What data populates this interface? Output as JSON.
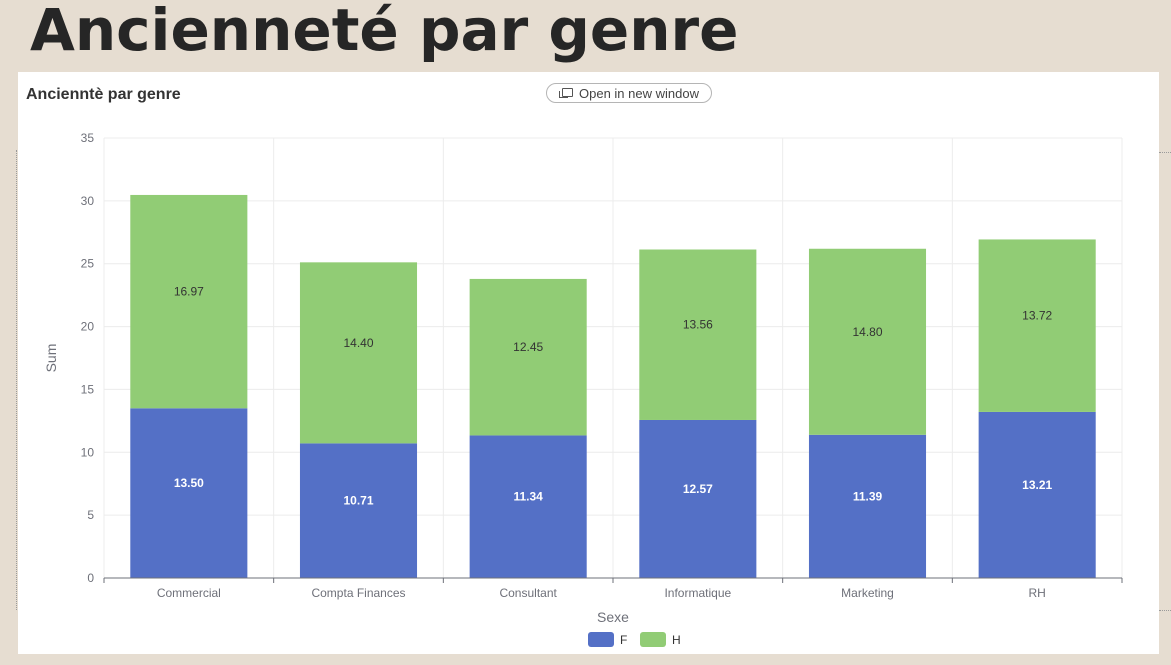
{
  "slide": {
    "title": "Ancienneté par genre"
  },
  "panel": {
    "title": "Ancienntè par genre",
    "open_label": "Open in new window"
  },
  "chart_data": {
    "type": "bar",
    "stacked": true,
    "title": "Ancienntè par genre",
    "xlabel": "Sexe",
    "ylabel": "Sum",
    "ylim": [
      0,
      35
    ],
    "yticks": [
      0,
      5,
      10,
      15,
      20,
      25,
      30,
      35
    ],
    "categories": [
      "Commercial",
      "Compta Finances",
      "Consultant",
      "Informatique",
      "Marketing",
      "RH"
    ],
    "series": [
      {
        "name": "F",
        "color": "#5470c6",
        "values": [
          13.5,
          10.71,
          11.34,
          12.57,
          11.39,
          13.21
        ]
      },
      {
        "name": "H",
        "color": "#91cc75",
        "values": [
          16.97,
          14.4,
          12.45,
          13.56,
          14.8,
          13.72
        ]
      }
    ],
    "grid": true,
    "legend_position": "bottom-center"
  }
}
